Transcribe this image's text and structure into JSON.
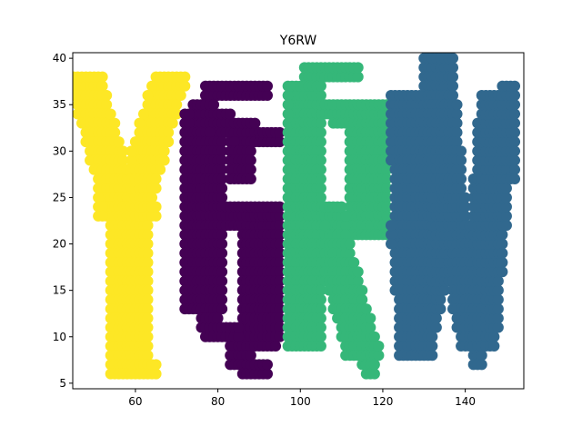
{
  "chart_data": {
    "type": "scatter",
    "title": "Y6RW",
    "xlabel": "",
    "ylabel": "",
    "xlim": [
      44.8,
      154.2
    ],
    "ylim": [
      4.4,
      40.6
    ],
    "xticks": [
      60,
      80,
      100,
      120,
      140
    ],
    "yticks": [
      5,
      10,
      15,
      20,
      25,
      30,
      35,
      40
    ],
    "grid": false,
    "legend": "none",
    "series": [
      {
        "letter": "Y",
        "color": "#fde725",
        "strokes": [
          {
            "x0": 48,
            "y0": 37,
            "x1": 58,
            "y1": 22,
            "w": 7
          },
          {
            "x0": 68,
            "y0": 37,
            "x1": 58,
            "y1": 22,
            "w": 7
          },
          {
            "x0": 55,
            "y0": 24,
            "x1": 60,
            "y1": 23,
            "w": 9
          },
          {
            "x0": 58,
            "y0": 22,
            "x1": 58,
            "y1": 6,
            "w": 9
          },
          {
            "x0": 56,
            "y0": 6,
            "x1": 64,
            "y1": 6,
            "w": 2
          }
        ]
      },
      {
        "letter": "6",
        "color": "#440154",
        "strokes": [
          {
            "x0": 78,
            "y0": 36,
            "x1": 91,
            "y1": 36,
            "w": 2
          },
          {
            "x0": 76,
            "y0": 34,
            "x1": 92,
            "y1": 31,
            "w": 5
          },
          {
            "x0": 76,
            "y0": 33,
            "x1": 76,
            "y1": 13,
            "w": 9
          },
          {
            "x0": 75,
            "y0": 24,
            "x1": 92,
            "y1": 22,
            "w": 4
          },
          {
            "x0": 90,
            "y0": 23,
            "x1": 90,
            "y1": 10,
            "w": 9
          },
          {
            "x0": 78,
            "y0": 11,
            "x1": 92,
            "y1": 9,
            "w": 4
          },
          {
            "x0": 84,
            "y0": 8,
            "x1": 90,
            "y1": 6,
            "w": 3
          },
          {
            "x0": 85,
            "y0": 31,
            "x1": 85,
            "y1": 27,
            "w": 5
          }
        ]
      },
      {
        "letter": "R",
        "color": "#35b779",
        "strokes": [
          {
            "x0": 102,
            "y0": 38,
            "x1": 112,
            "y1": 38,
            "w": 3
          },
          {
            "x0": 100,
            "y0": 35,
            "x1": 120,
            "y1": 33,
            "w": 5
          },
          {
            "x0": 101,
            "y0": 36,
            "x1": 101,
            "y1": 9,
            "w": 8
          },
          {
            "x0": 116,
            "y0": 34,
            "x1": 116,
            "y1": 22,
            "w": 9
          },
          {
            "x0": 102,
            "y0": 24,
            "x1": 120,
            "y1": 21,
            "w": 4
          },
          {
            "x0": 107,
            "y0": 21,
            "x1": 115,
            "y1": 8,
            "w": 7
          },
          {
            "x0": 115,
            "y0": 9,
            "x1": 117,
            "y1": 6,
            "w": 2
          }
        ]
      },
      {
        "letter": "W",
        "color": "#31688e",
        "strokes": [
          {
            "x0": 126,
            "y0": 35,
            "x1": 128,
            "y1": 8,
            "w": 8
          },
          {
            "x0": 128,
            "y0": 9,
            "x1": 136,
            "y1": 24,
            "w": 7
          },
          {
            "x0": 136,
            "y0": 24,
            "x1": 143,
            "y1": 9,
            "w": 7
          },
          {
            "x0": 143,
            "y0": 9,
            "x1": 148,
            "y1": 35,
            "w": 8
          },
          {
            "x0": 133,
            "y0": 39,
            "x1": 137,
            "y1": 20,
            "w": 7
          },
          {
            "x0": 124,
            "y0": 21,
            "x1": 130,
            "y1": 17,
            "w": 5
          },
          {
            "x0": 143,
            "y0": 8,
            "x1": 143,
            "y1": 7,
            "w": 2
          },
          {
            "x0": 150,
            "y0": 36,
            "x1": 150,
            "y1": 27,
            "w": 3
          }
        ]
      }
    ]
  }
}
